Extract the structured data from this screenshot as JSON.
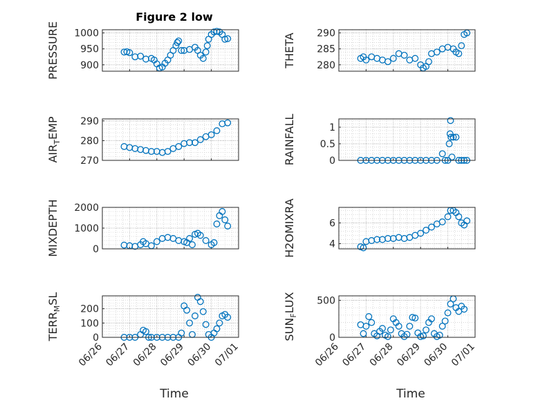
{
  "figure": {
    "title": "Figure 2 low",
    "xlabel": "Time",
    "xticklabels": [
      "06/26",
      "06/27",
      "06/28",
      "06/29",
      "06/30",
      "07/01"
    ],
    "xlim_days": [
      26,
      31
    ],
    "marker_color": "#0072BD",
    "grid": "major and minor dotted"
  },
  "chart_data": [
    {
      "type": "scatter",
      "ylabel_main": "PRESSURE",
      "ylabel_sub": "",
      "ylim": [
        880,
        1010
      ],
      "yticks": [
        900,
        950,
        1000
      ],
      "series": [
        {
          "x": [
            26.8,
            26.9,
            27.0,
            27.2,
            27.4,
            27.6,
            27.8,
            27.9,
            28.0,
            28.1,
            28.2,
            28.3,
            28.4,
            28.5,
            28.6,
            28.7,
            28.75,
            28.8,
            28.9,
            29.0,
            29.2,
            29.4,
            29.5,
            29.6,
            29.7,
            29.8,
            29.85,
            29.9,
            30.0,
            30.1,
            30.2,
            30.3,
            30.4,
            30.5,
            30.6
          ],
          "y": [
            940,
            941,
            938,
            925,
            927,
            918,
            920,
            915,
            903,
            890,
            893,
            905,
            915,
            930,
            945,
            960,
            970,
            975,
            945,
            945,
            948,
            955,
            945,
            930,
            920,
            940,
            960,
            980,
            995,
            1003,
            1005,
            1003,
            995,
            980,
            982
          ]
        }
      ]
    },
    {
      "type": "scatter",
      "ylabel_main": "THETA",
      "ylabel_sub": "",
      "ylim": [
        278,
        291
      ],
      "yticks": [
        280,
        285,
        290
      ],
      "series": [
        {
          "x": [
            26.8,
            26.9,
            27.0,
            27.2,
            27.4,
            27.6,
            27.8,
            28.0,
            28.2,
            28.4,
            28.6,
            28.8,
            29.0,
            29.1,
            29.2,
            29.3,
            29.4,
            29.6,
            29.8,
            30.0,
            30.2,
            30.3,
            30.4,
            30.5,
            30.6,
            30.7
          ],
          "y": [
            282,
            282.5,
            281.5,
            282.5,
            282,
            281.5,
            281,
            282,
            283.5,
            283,
            281.5,
            282,
            280,
            279,
            279.5,
            281,
            283.5,
            284,
            285,
            285.5,
            285,
            284,
            283.5,
            286,
            289.5,
            290
          ]
        }
      ]
    },
    {
      "type": "scatter",
      "ylabel_main": "AIR",
      "ylabel_sub": "T",
      "ylabel_tail": "EMP",
      "ylim": [
        270,
        291
      ],
      "yticks": [
        270,
        280,
        290
      ],
      "series": [
        {
          "x": [
            26.8,
            27.0,
            27.2,
            27.4,
            27.6,
            27.8,
            28.0,
            28.2,
            28.4,
            28.6,
            28.8,
            29.0,
            29.2,
            29.4,
            29.6,
            29.8,
            30.0,
            30.2,
            30.4,
            30.6
          ],
          "y": [
            277,
            276.5,
            276,
            275.5,
            275,
            274.5,
            274.5,
            274,
            274.5,
            276,
            277,
            278.5,
            279,
            279,
            280.5,
            282,
            283,
            285,
            288.5,
            289
          ]
        }
      ]
    },
    {
      "type": "scatter",
      "ylabel_main": "RAINFALL",
      "ylabel_sub": "",
      "ylim": [
        0,
        1.25
      ],
      "yticks": [
        0,
        0.5,
        1
      ],
      "yticklabels": [
        "0",
        "0.5",
        "1"
      ],
      "series": [
        {
          "x": [
            26.8,
            27.0,
            27.2,
            27.4,
            27.6,
            27.8,
            28.0,
            28.2,
            28.4,
            28.6,
            28.8,
            29.0,
            29.2,
            29.4,
            29.6,
            29.8,
            29.9,
            30.0,
            30.05,
            30.08,
            30.1,
            30.12,
            30.15,
            30.2,
            30.3,
            30.4,
            30.5,
            30.6,
            30.7
          ],
          "y": [
            0,
            0,
            0,
            0,
            0,
            0,
            0,
            0,
            0,
            0,
            0,
            0,
            0,
            0,
            0,
            0.2,
            0,
            0,
            0.5,
            0.8,
            1.2,
            0.7,
            0.1,
            0.7,
            0.7,
            0,
            0,
            0,
            0
          ]
        }
      ]
    },
    {
      "type": "scatter",
      "ylabel_main": "MIXDEPTH",
      "ylabel_sub": "",
      "ylim": [
        0,
        2000
      ],
      "yticks": [
        0,
        1000,
        2000
      ],
      "series": [
        {
          "x": [
            26.8,
            27.0,
            27.2,
            27.4,
            27.5,
            27.6,
            27.8,
            28.0,
            28.2,
            28.4,
            28.6,
            28.8,
            29.0,
            29.1,
            29.2,
            29.3,
            29.4,
            29.5,
            29.6,
            29.8,
            30.0,
            30.1,
            30.2,
            30.3,
            30.4,
            30.5,
            30.6
          ],
          "y": [
            180,
            150,
            120,
            200,
            350,
            250,
            150,
            350,
            500,
            550,
            500,
            400,
            350,
            300,
            500,
            200,
            700,
            750,
            650,
            400,
            200,
            300,
            1200,
            1600,
            1800,
            1400,
            1100
          ]
        }
      ]
    },
    {
      "type": "scatter",
      "ylabel_main": "H2OMIXRA",
      "ylabel_sub": "",
      "ylim": [
        3.5,
        7.5
      ],
      "yticks": [
        4,
        6
      ],
      "series": [
        {
          "x": [
            26.8,
            26.9,
            27.0,
            27.2,
            27.4,
            27.6,
            27.8,
            28.0,
            28.2,
            28.4,
            28.6,
            28.8,
            29.0,
            29.2,
            29.4,
            29.6,
            29.8,
            30.0,
            30.1,
            30.2,
            30.3,
            30.4,
            30.5,
            30.6,
            30.7
          ],
          "y": [
            3.7,
            3.6,
            4.2,
            4.3,
            4.4,
            4.4,
            4.5,
            4.5,
            4.6,
            4.5,
            4.6,
            4.8,
            5.0,
            5.3,
            5.6,
            5.9,
            6.1,
            6.6,
            7.2,
            7.2,
            7.0,
            6.6,
            6.0,
            5.8,
            6.2
          ]
        }
      ]
    },
    {
      "type": "scatter",
      "ylabel_main": "TERR",
      "ylabel_sub": "M",
      "ylabel_tail": "SL",
      "ylim": [
        0,
        290
      ],
      "yticks": [
        0,
        100,
        200
      ],
      "series": [
        {
          "x": [
            26.8,
            27.0,
            27.2,
            27.4,
            27.5,
            27.6,
            27.7,
            27.8,
            28.0,
            28.2,
            28.4,
            28.6,
            28.8,
            28.9,
            29.0,
            29.1,
            29.2,
            29.3,
            29.4,
            29.5,
            29.6,
            29.7,
            29.8,
            29.9,
            30.0,
            30.1,
            30.2,
            30.3,
            30.4,
            30.5,
            30.6
          ],
          "y": [
            0,
            0,
            0,
            20,
            50,
            40,
            0,
            0,
            0,
            0,
            0,
            0,
            0,
            30,
            220,
            190,
            100,
            20,
            150,
            280,
            250,
            180,
            90,
            20,
            0,
            30,
            60,
            100,
            150,
            160,
            140
          ]
        }
      ]
    },
    {
      "type": "scatter",
      "ylabel_main": "SUN",
      "ylabel_sub": "F",
      "ylabel_tail": "LUX",
      "ylim": [
        0,
        560
      ],
      "yticks": [
        0,
        500
      ],
      "series": [
        {
          "x": [
            26.8,
            26.9,
            27.0,
            27.1,
            27.2,
            27.3,
            27.4,
            27.5,
            27.6,
            27.7,
            27.8,
            27.9,
            28.0,
            28.1,
            28.2,
            28.3,
            28.4,
            28.5,
            28.6,
            28.7,
            28.8,
            28.9,
            29.0,
            29.1,
            29.2,
            29.3,
            29.4,
            29.5,
            29.6,
            29.7,
            29.8,
            29.9,
            30.0,
            30.1,
            30.2,
            30.3,
            30.4,
            30.5,
            30.6
          ],
          "y": [
            170,
            50,
            150,
            280,
            200,
            50,
            20,
            80,
            120,
            30,
            10,
            100,
            250,
            200,
            150,
            50,
            10,
            40,
            150,
            270,
            260,
            60,
            10,
            20,
            100,
            200,
            250,
            50,
            10,
            30,
            150,
            220,
            330,
            450,
            520,
            400,
            350,
            420,
            380
          ]
        }
      ]
    }
  ]
}
